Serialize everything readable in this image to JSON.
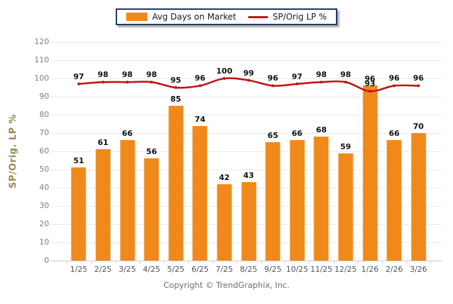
{
  "legend": {
    "items": [
      {
        "label": "Avg Days on Market",
        "swatch": "bar-swatch",
        "color": "#F0891A"
      },
      {
        "label": "SP/Orig LP %",
        "swatch": "line-swatch",
        "color": "#C41414"
      }
    ]
  },
  "chart_data": {
    "type": "bar+line combo",
    "categories": [
      "1/25",
      "2/25",
      "3/25",
      "4/25",
      "5/25",
      "6/25",
      "7/25",
      "8/25",
      "9/25",
      "10/25",
      "11/25",
      "12/25",
      "1/26",
      "2/26",
      "3/26"
    ],
    "series": [
      {
        "name": "Avg Days on Market",
        "type": "bar",
        "color": "#F0891A",
        "values": [
          51,
          61,
          66,
          56,
          85,
          74,
          42,
          43,
          65,
          66,
          68,
          59,
          96,
          66,
          70
        ]
      },
      {
        "name": "SP/Orig LP %",
        "type": "line",
        "color": "#C41414",
        "values": [
          97,
          98,
          98,
          98,
          95,
          96,
          100,
          99,
          96,
          97,
          98,
          98,
          93,
          96,
          96
        ]
      }
    ],
    "ylabel": "SP/Orig. LP %",
    "xlabel": "",
    "ylim": [
      0,
      120
    ],
    "ytick_step": 10,
    "yticks": [
      0,
      10,
      20,
      30,
      40,
      50,
      60,
      70,
      80,
      90,
      100,
      110,
      120
    ],
    "grid": true,
    "legend_position": "top-center",
    "data_labels": true
  },
  "footer": {
    "copyright": "Copyright © TrendGraphix, Inc."
  },
  "colors": {
    "bar": "#F0891A",
    "line": "#C41414",
    "legend_border": "#1F3864",
    "axis_title": "#948A54",
    "y_tick_text": "#808080",
    "x_tick_text": "#4D5160",
    "gridline": "#EAEAEA"
  }
}
